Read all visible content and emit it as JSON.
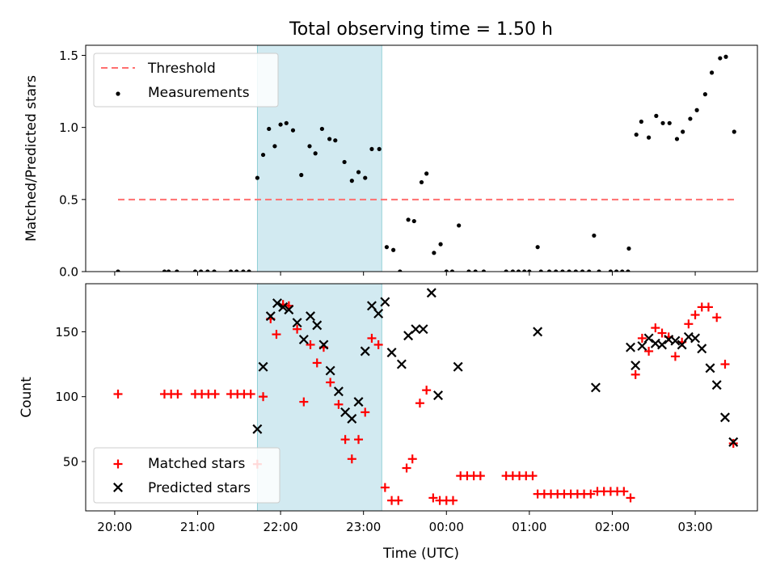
{
  "colors": {
    "threshold": "#ff6f6f",
    "measurements": "#000000",
    "matched": "#ff0000",
    "predicted": "#000000",
    "shade": "#add8e6"
  },
  "chart_data": {
    "title": "Total observing time = 1.50 h",
    "xlabel": "Time (UTC)",
    "x_unit": "hours since 20:00 UTC",
    "xlim": [
      -0.35,
      7.75
    ],
    "x_ticks": [
      {
        "v": 0,
        "label": "20:00"
      },
      {
        "v": 1,
        "label": "21:00"
      },
      {
        "v": 2,
        "label": "22:00"
      },
      {
        "v": 3,
        "label": "23:00"
      },
      {
        "v": 4,
        "label": "00:00"
      },
      {
        "v": 5,
        "label": "01:00"
      },
      {
        "v": 6,
        "label": "02:00"
      },
      {
        "v": 7,
        "label": "03:00"
      }
    ],
    "shaded_span": [
      1.72,
      3.22
    ],
    "charts": [
      {
        "type": "scatter",
        "ylabel": "Matched/Predicted stars",
        "ylim": [
          0,
          1.57
        ],
        "y_ticks": [
          {
            "v": 0,
            "label": "0.0"
          },
          {
            "v": 0.5,
            "label": "0.5"
          },
          {
            "v": 1.0,
            "label": "1.0"
          },
          {
            "v": 1.5,
            "label": "1.5"
          }
        ],
        "legend": "upper-left",
        "threshold": {
          "name": "Threshold",
          "value": 0.5,
          "x_range": [
            0.04,
            7.47
          ]
        },
        "series": [
          {
            "name": "Measurements",
            "points": [
              [
                0.04,
                0.0
              ],
              [
                0.6,
                0.0
              ],
              [
                0.65,
                0.0
              ],
              [
                0.75,
                0.0
              ],
              [
                0.97,
                0.0
              ],
              [
                1.04,
                0.0
              ],
              [
                1.12,
                0.0
              ],
              [
                1.2,
                0.0
              ],
              [
                1.4,
                0.0
              ],
              [
                1.47,
                0.0
              ],
              [
                1.55,
                0.0
              ],
              [
                1.62,
                0.0
              ],
              [
                1.72,
                0.65
              ],
              [
                1.79,
                0.81
              ],
              [
                1.86,
                0.99
              ],
              [
                1.93,
                0.87
              ],
              [
                2.0,
                1.02
              ],
              [
                2.07,
                1.03
              ],
              [
                2.15,
                0.98
              ],
              [
                2.25,
                0.67
              ],
              [
                2.35,
                0.87
              ],
              [
                2.42,
                0.82
              ],
              [
                2.5,
                0.99
              ],
              [
                2.59,
                0.92
              ],
              [
                2.66,
                0.91
              ],
              [
                2.77,
                0.76
              ],
              [
                2.86,
                0.63
              ],
              [
                2.94,
                0.69
              ],
              [
                3.02,
                0.65
              ],
              [
                3.1,
                0.85
              ],
              [
                3.19,
                0.85
              ],
              [
                3.28,
                0.17
              ],
              [
                3.36,
                0.15
              ],
              [
                3.44,
                0.0
              ],
              [
                3.54,
                0.36
              ],
              [
                3.61,
                0.35
              ],
              [
                3.7,
                0.62
              ],
              [
                3.76,
                0.68
              ],
              [
                3.85,
                0.13
              ],
              [
                3.93,
                0.19
              ],
              [
                4.0,
                0.0
              ],
              [
                4.07,
                0.0
              ],
              [
                4.15,
                0.32
              ],
              [
                4.27,
                0.0
              ],
              [
                4.35,
                0.0
              ],
              [
                4.45,
                0.0
              ],
              [
                4.72,
                0.0
              ],
              [
                4.8,
                0.0
              ],
              [
                4.87,
                0.0
              ],
              [
                4.94,
                0.0
              ],
              [
                5.0,
                0.0
              ],
              [
                5.1,
                0.17
              ],
              [
                5.14,
                0.0
              ],
              [
                5.24,
                0.0
              ],
              [
                5.32,
                0.0
              ],
              [
                5.4,
                0.0
              ],
              [
                5.48,
                0.0
              ],
              [
                5.56,
                0.0
              ],
              [
                5.64,
                0.0
              ],
              [
                5.72,
                0.0
              ],
              [
                5.78,
                0.25
              ],
              [
                5.84,
                0.0
              ],
              [
                5.98,
                0.0
              ],
              [
                6.05,
                0.0
              ],
              [
                6.12,
                0.0
              ],
              [
                6.19,
                0.0
              ],
              [
                6.2,
                0.16
              ],
              [
                6.29,
                0.95
              ],
              [
                6.35,
                1.04
              ],
              [
                6.44,
                0.93
              ],
              [
                6.53,
                1.08
              ],
              [
                6.61,
                1.03
              ],
              [
                6.69,
                1.03
              ],
              [
                6.78,
                0.92
              ],
              [
                6.85,
                0.97
              ],
              [
                6.94,
                1.06
              ],
              [
                7.02,
                1.12
              ],
              [
                7.12,
                1.23
              ],
              [
                7.2,
                1.38
              ],
              [
                7.3,
                1.48
              ],
              [
                7.37,
                1.49
              ],
              [
                7.47,
                0.97
              ]
            ]
          }
        ]
      },
      {
        "type": "scatter",
        "ylabel": "Count",
        "ylim": [
          12,
          187
        ],
        "y_ticks": [
          {
            "v": 50,
            "label": "50"
          },
          {
            "v": 100,
            "label": "100"
          },
          {
            "v": 150,
            "label": "150"
          }
        ],
        "legend": "lower-left",
        "series": [
          {
            "name": "Matched stars",
            "marker": "+",
            "points": [
              [
                0.04,
                102
              ],
              [
                0.6,
                102
              ],
              [
                0.68,
                102
              ],
              [
                0.76,
                102
              ],
              [
                0.97,
                102
              ],
              [
                1.05,
                102
              ],
              [
                1.13,
                102
              ],
              [
                1.21,
                102
              ],
              [
                1.4,
                102
              ],
              [
                1.48,
                102
              ],
              [
                1.56,
                102
              ],
              [
                1.64,
                102
              ],
              [
                1.72,
                48
              ],
              [
                1.79,
                100
              ],
              [
                1.88,
                160
              ],
              [
                1.95,
                148
              ],
              [
                2.03,
                171
              ],
              [
                2.1,
                170
              ],
              [
                2.2,
                152
              ],
              [
                2.28,
                96
              ],
              [
                2.36,
                140
              ],
              [
                2.44,
                126
              ],
              [
                2.52,
                138
              ],
              [
                2.6,
                111
              ],
              [
                2.7,
                94
              ],
              [
                2.78,
                67
              ],
              [
                2.86,
                52
              ],
              [
                2.94,
                67
              ],
              [
                3.02,
                88
              ],
              [
                3.1,
                145
              ],
              [
                3.18,
                140
              ],
              [
                3.26,
                30
              ],
              [
                3.34,
                20
              ],
              [
                3.42,
                20
              ],
              [
                3.52,
                45
              ],
              [
                3.59,
                52
              ],
              [
                3.68,
                95
              ],
              [
                3.76,
                105
              ],
              [
                3.84,
                22
              ],
              [
                3.92,
                20
              ],
              [
                4.0,
                20
              ],
              [
                4.08,
                20
              ],
              [
                4.17,
                39
              ],
              [
                4.25,
                39
              ],
              [
                4.33,
                39
              ],
              [
                4.41,
                39
              ],
              [
                4.72,
                39
              ],
              [
                4.8,
                39
              ],
              [
                4.88,
                39
              ],
              [
                4.96,
                39
              ],
              [
                5.04,
                39
              ],
              [
                5.1,
                25
              ],
              [
                5.18,
                25
              ],
              [
                5.26,
                25
              ],
              [
                5.34,
                25
              ],
              [
                5.42,
                25
              ],
              [
                5.5,
                25
              ],
              [
                5.58,
                25
              ],
              [
                5.66,
                25
              ],
              [
                5.74,
                25
              ],
              [
                5.82,
                27
              ],
              [
                5.9,
                27
              ],
              [
                5.98,
                27
              ],
              [
                6.06,
                27
              ],
              [
                6.14,
                27
              ],
              [
                6.22,
                22
              ],
              [
                6.28,
                117
              ],
              [
                6.36,
                145
              ],
              [
                6.44,
                135
              ],
              [
                6.52,
                153
              ],
              [
                6.6,
                149
              ],
              [
                6.68,
                146
              ],
              [
                6.76,
                131
              ],
              [
                6.84,
                142
              ],
              [
                6.92,
                156
              ],
              [
                7.0,
                163
              ],
              [
                7.08,
                169
              ],
              [
                7.16,
                169
              ],
              [
                7.26,
                161
              ],
              [
                7.36,
                125
              ],
              [
                7.46,
                64
              ]
            ]
          },
          {
            "name": "Predicted stars",
            "marker": "x",
            "points": [
              [
                1.72,
                75
              ],
              [
                1.79,
                123
              ],
              [
                1.88,
                162
              ],
              [
                1.96,
                172
              ],
              [
                2.03,
                169
              ],
              [
                2.1,
                167
              ],
              [
                2.2,
                157
              ],
              [
                2.28,
                144
              ],
              [
                2.36,
                162
              ],
              [
                2.44,
                155
              ],
              [
                2.52,
                140
              ],
              [
                2.6,
                120
              ],
              [
                2.7,
                104
              ],
              [
                2.78,
                88
              ],
              [
                2.86,
                83
              ],
              [
                2.94,
                96
              ],
              [
                3.02,
                135
              ],
              [
                3.1,
                170
              ],
              [
                3.18,
                164
              ],
              [
                3.26,
                173
              ],
              [
                3.34,
                134
              ],
              [
                3.46,
                125
              ],
              [
                3.54,
                147
              ],
              [
                3.63,
                152
              ],
              [
                3.72,
                152
              ],
              [
                3.82,
                180
              ],
              [
                3.9,
                101
              ],
              [
                4.14,
                123
              ],
              [
                5.1,
                150
              ],
              [
                5.8,
                107
              ],
              [
                6.22,
                138
              ],
              [
                6.28,
                124
              ],
              [
                6.36,
                139
              ],
              [
                6.44,
                145
              ],
              [
                6.52,
                141
              ],
              [
                6.6,
                140
              ],
              [
                6.68,
                144
              ],
              [
                6.76,
                143
              ],
              [
                6.84,
                140
              ],
              [
                6.92,
                146
              ],
              [
                7.0,
                145
              ],
              [
                7.08,
                137
              ],
              [
                7.18,
                122
              ],
              [
                7.26,
                109
              ],
              [
                7.36,
                84
              ],
              [
                7.46,
                65
              ]
            ]
          }
        ]
      }
    ]
  }
}
